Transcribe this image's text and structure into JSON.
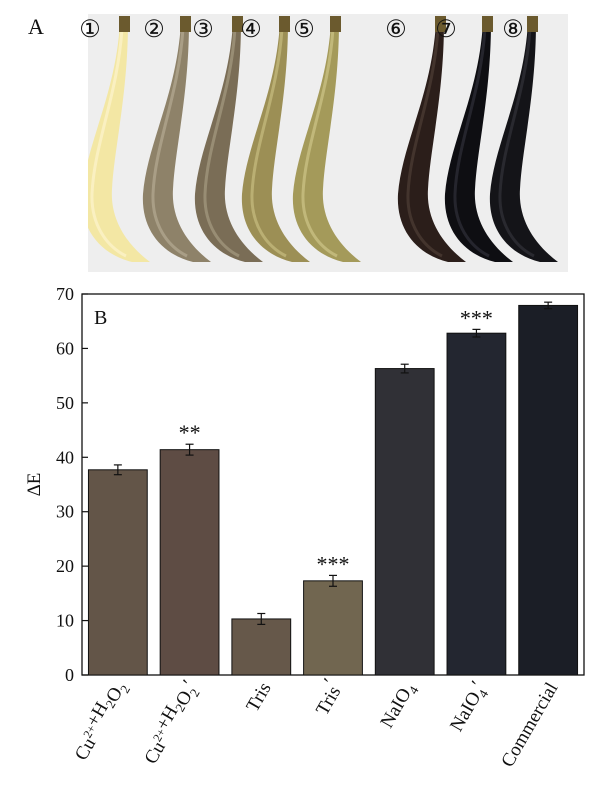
{
  "panel_a": {
    "label": "A",
    "samples": [
      {
        "num": "1",
        "color": "#f3e7a4",
        "hi": "#fbf3c8"
      },
      {
        "num": "2",
        "color": "#8e8269",
        "hi": "#b0a58d"
      },
      {
        "num": "3",
        "color": "#7a6d56",
        "hi": "#a0957c"
      },
      {
        "num": "4",
        "color": "#9c8f55",
        "hi": "#c2b67a"
      },
      {
        "num": "5",
        "color": "#a49a5a",
        "hi": "#c8bf82"
      },
      {
        "num": "6",
        "color": "#2b1e1a",
        "hi": "#4a3a32"
      },
      {
        "num": "7",
        "color": "#0e0e12",
        "hi": "#2c2c34"
      },
      {
        "num": "8",
        "color": "#141418",
        "hi": "#2e2e36"
      }
    ]
  },
  "chart_data": {
    "type": "bar",
    "panel_label": "B",
    "ylabel": "ΔE",
    "xlabel": "",
    "ylim": [
      0,
      70
    ],
    "yticks": [
      0,
      10,
      20,
      30,
      40,
      50,
      60,
      70
    ],
    "grid": false,
    "categories": [
      {
        "base": "Cu",
        "sup": "2+",
        "mid": "+H",
        "sub1": "2",
        "o": "O",
        "sub2": "2",
        "prime": ""
      },
      {
        "base": "Cu",
        "sup": "2+",
        "mid": "+H",
        "sub1": "2",
        "o": "O",
        "sub2": "2",
        "prime": "′"
      },
      {
        "base": "Tris",
        "sup": "",
        "mid": "",
        "sub1": "",
        "o": "",
        "sub2": "",
        "prime": ""
      },
      {
        "base": "Tris",
        "sup": "",
        "mid": "",
        "sub1": "",
        "o": "",
        "sub2": "",
        "prime": "′"
      },
      {
        "base": "NaIO",
        "sup": "",
        "mid": "",
        "sub1": "",
        "o": "",
        "sub2": "4",
        "prime": ""
      },
      {
        "base": "NaIO",
        "sup": "",
        "mid": "",
        "sub1": "",
        "o": "",
        "sub2": "4",
        "prime": "′"
      },
      {
        "base": "Commercial",
        "sup": "",
        "mid": "",
        "sub1": "",
        "o": "",
        "sub2": "",
        "prime": ""
      }
    ],
    "values": [
      37.7,
      41.4,
      10.3,
      17.3,
      56.3,
      62.8,
      67.9
    ],
    "errors": [
      0.9,
      1.0,
      1.0,
      1.0,
      0.8,
      0.7,
      0.6
    ],
    "significance": [
      "",
      "**",
      "",
      "***",
      "",
      "***",
      ""
    ],
    "colors": [
      "#635548",
      "#5e4c44",
      "#66584a",
      "#716650",
      "#303036",
      "#232630",
      "#1b1e26"
    ]
  }
}
